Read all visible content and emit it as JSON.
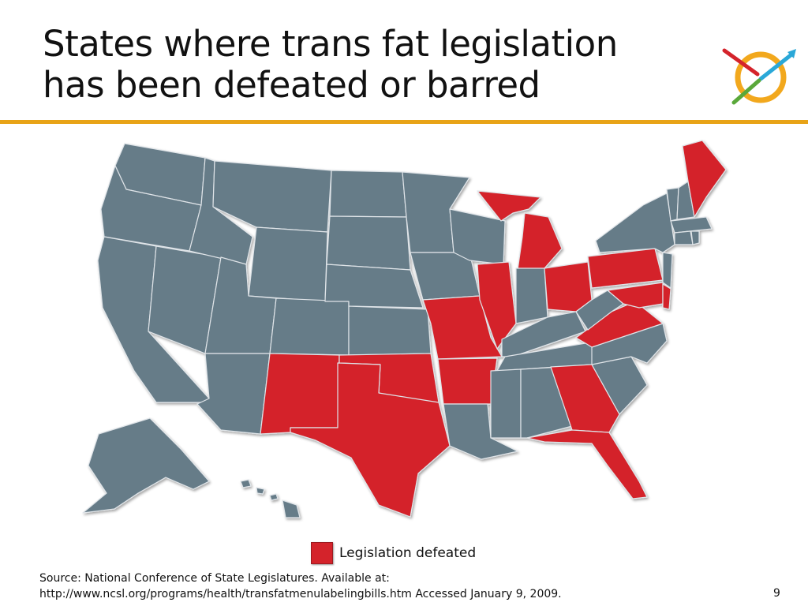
{
  "slide": {
    "title_line1": "States where trans fat legislation",
    "title_line2": "has been defeated or barred",
    "page_number": "9"
  },
  "legend": {
    "label": "Legislation defeated",
    "color": "#d4232b"
  },
  "source": {
    "line1": "Source: National Conference of State Legislatures. Available at:",
    "line2": "http://www.ncsl.org/programs/health/transfatmenulabelingbills.htm Accessed January 9, 2009."
  },
  "map": {
    "default_state_color": "#667b88",
    "highlight_color": "#d4232b",
    "defeated_states": [
      "Maine",
      "Michigan",
      "Illinois",
      "Ohio",
      "Pennsylvania",
      "Maryland",
      "Delaware",
      "Virginia",
      "Missouri",
      "Arkansas",
      "Oklahoma",
      "Texas",
      "New Mexico",
      "Georgia",
      "Florida"
    ]
  },
  "colors": {
    "accent_rule": "#e8a317"
  },
  "icons": {
    "logo": "target-arrow-logo"
  }
}
